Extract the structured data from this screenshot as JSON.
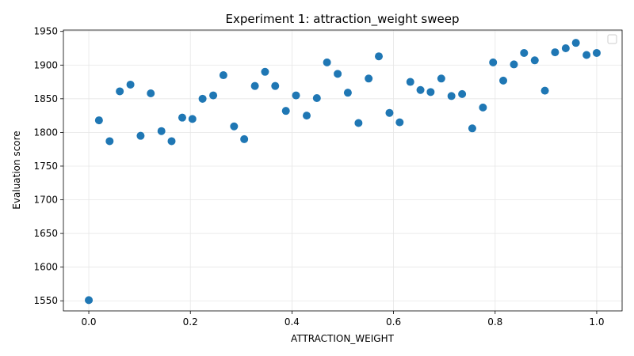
{
  "chart_data": {
    "type": "scatter",
    "title": "Experiment 1: attraction_weight sweep",
    "xlabel": "ATTRACTION_WEIGHT",
    "ylabel": "Evaluation score",
    "xlim": [
      -0.05,
      1.05
    ],
    "ylim": [
      1535,
      1952
    ],
    "xticks": [
      0.0,
      0.2,
      0.4,
      0.6,
      0.8,
      1.0
    ],
    "xtick_labels": [
      "0.0",
      "0.2",
      "0.4",
      "0.6",
      "0.8",
      "1.0"
    ],
    "yticks": [
      1550,
      1600,
      1650,
      1700,
      1750,
      1800,
      1850,
      1900,
      1950
    ],
    "ytick_labels": [
      "1550",
      "1600",
      "1650",
      "1700",
      "1750",
      "1800",
      "1850",
      "1900",
      "1950"
    ],
    "grid": true,
    "legend": "top-right (empty)",
    "marker_color": "#1f77b4",
    "x": [
      0.0,
      0.02,
      0.041,
      0.061,
      0.082,
      0.102,
      0.122,
      0.143,
      0.163,
      0.184,
      0.204,
      0.224,
      0.245,
      0.265,
      0.286,
      0.306,
      0.327,
      0.347,
      0.367,
      0.388,
      0.408,
      0.429,
      0.449,
      0.469,
      0.49,
      0.51,
      0.531,
      0.551,
      0.571,
      0.592,
      0.612,
      0.633,
      0.653,
      0.673,
      0.694,
      0.714,
      0.735,
      0.755,
      0.776,
      0.796,
      0.816,
      0.837,
      0.857,
      0.878,
      0.898,
      0.918,
      0.939,
      0.959,
      0.98,
      1.0
    ],
    "y": [
      1551,
      1818,
      1787,
      1861,
      1871,
      1795,
      1858,
      1802,
      1787,
      1822,
      1820,
      1850,
      1855,
      1885,
      1809,
      1790,
      1869,
      1890,
      1869,
      1832,
      1855,
      1825,
      1851,
      1904,
      1887,
      1859,
      1814,
      1880,
      1913,
      1829,
      1815,
      1875,
      1863,
      1860,
      1880,
      1854,
      1857,
      1806,
      1837,
      1904,
      1877,
      1901,
      1918,
      1907,
      1862,
      1919,
      1925,
      1933,
      1915,
      1918
    ]
  }
}
